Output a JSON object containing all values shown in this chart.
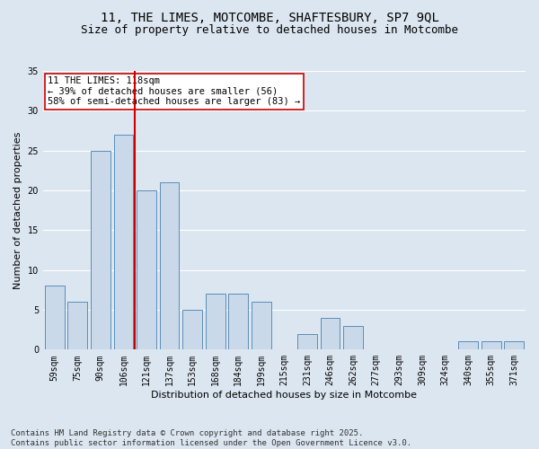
{
  "title_line1": "11, THE LIMES, MOTCOMBE, SHAFTESBURY, SP7 9QL",
  "title_line2": "Size of property relative to detached houses in Motcombe",
  "xlabel": "Distribution of detached houses by size in Motcombe",
  "ylabel": "Number of detached properties",
  "categories": [
    "59sqm",
    "75sqm",
    "90sqm",
    "106sqm",
    "121sqm",
    "137sqm",
    "153sqm",
    "168sqm",
    "184sqm",
    "199sqm",
    "215sqm",
    "231sqm",
    "246sqm",
    "262sqm",
    "277sqm",
    "293sqm",
    "309sqm",
    "324sqm",
    "340sqm",
    "355sqm",
    "371sqm"
  ],
  "values": [
    8,
    6,
    25,
    27,
    20,
    21,
    5,
    7,
    7,
    6,
    0,
    2,
    4,
    3,
    0,
    0,
    0,
    0,
    1,
    1,
    1
  ],
  "bar_color": "#c9d9ea",
  "bar_edge_color": "#5b8db8",
  "vline_x": 3.5,
  "vline_color": "#cc0000",
  "annotation_text": "11 THE LIMES: 118sqm\n← 39% of detached houses are smaller (56)\n58% of semi-detached houses are larger (83) →",
  "annotation_box_color": "#ffffff",
  "annotation_box_edge": "#cc0000",
  "ylim": [
    0,
    35
  ],
  "yticks": [
    0,
    5,
    10,
    15,
    20,
    25,
    30,
    35
  ],
  "background_color": "#dce6f0",
  "grid_color": "#ffffff",
  "footer_line1": "Contains HM Land Registry data © Crown copyright and database right 2025.",
  "footer_line2": "Contains public sector information licensed under the Open Government Licence v3.0.",
  "title_fontsize": 10,
  "subtitle_fontsize": 9,
  "axis_label_fontsize": 8,
  "tick_fontsize": 7,
  "annotation_fontsize": 7.5,
  "footer_fontsize": 6.5
}
